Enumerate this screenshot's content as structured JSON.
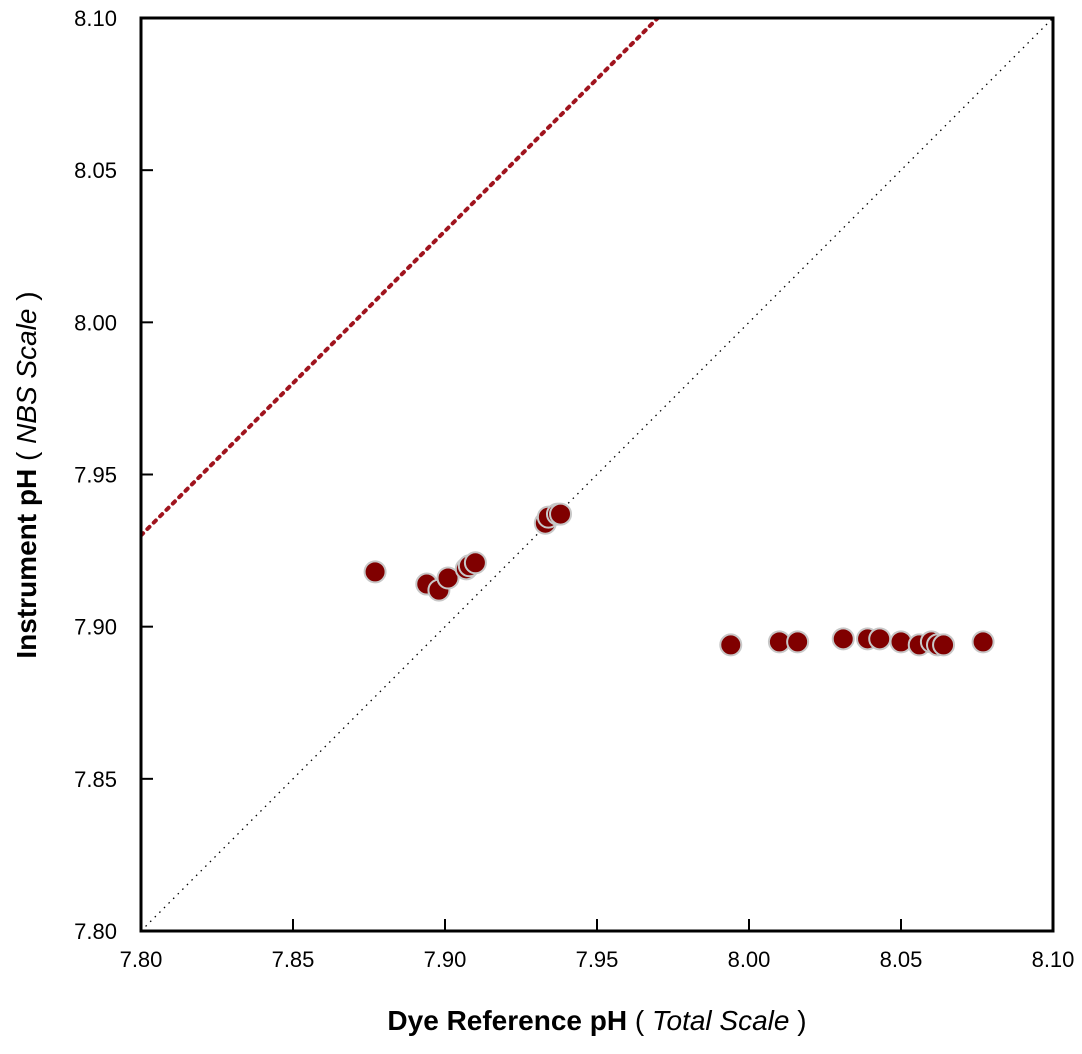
{
  "chart_data": {
    "type": "scatter",
    "xlabel": [
      "Dye Reference pH",
      "(",
      "Total Scale",
      ")"
    ],
    "ylabel": [
      "Instrument pH",
      "(",
      "NBS Scale",
      ")"
    ],
    "xlim": [
      7.8,
      8.1
    ],
    "ylim": [
      7.8,
      8.1
    ],
    "xticks": [
      {
        "value": 7.8,
        "label": "7.80"
      },
      {
        "value": 7.85,
        "label": "7.85"
      },
      {
        "value": 7.9,
        "label": "7.90"
      },
      {
        "value": 7.95,
        "label": "7.95"
      },
      {
        "value": 8.0,
        "label": "8.00"
      },
      {
        "value": 8.05,
        "label": "8.05"
      },
      {
        "value": 8.1,
        "label": "8.10"
      }
    ],
    "yticks": [
      {
        "value": 7.8,
        "label": "7.80"
      },
      {
        "value": 7.85,
        "label": "7.85"
      },
      {
        "value": 7.9,
        "label": "7.90"
      },
      {
        "value": 7.95,
        "label": "7.95"
      },
      {
        "value": 8.0,
        "label": "8.00"
      },
      {
        "value": 8.05,
        "label": "8.05"
      },
      {
        "value": 8.1,
        "label": "8.10"
      }
    ],
    "lines": [
      {
        "color": "#000000",
        "x": [
          7.8,
          8.1
        ],
        "y": [
          7.8,
          8.1
        ]
      },
      {
        "color": "#a0141e",
        "x": [
          7.8,
          7.97
        ],
        "y": [
          7.93,
          8.1
        ]
      }
    ],
    "series": [
      {
        "color": "#800000",
        "x": [
          7.877,
          7.894,
          7.898,
          7.901,
          7.907,
          7.908,
          7.91,
          7.933,
          7.934,
          7.937,
          7.938,
          7.994,
          8.01,
          8.016,
          8.031,
          8.039,
          8.043,
          8.05,
          8.056,
          8.06,
          8.062,
          8.064,
          8.077
        ],
        "values": [
          7.918,
          7.914,
          7.912,
          7.916,
          7.919,
          7.92,
          7.921,
          7.934,
          7.936,
          7.937,
          7.937,
          7.894,
          7.895,
          7.895,
          7.896,
          7.896,
          7.896,
          7.895,
          7.894,
          7.895,
          7.894,
          7.894,
          7.895
        ]
      }
    ]
  }
}
